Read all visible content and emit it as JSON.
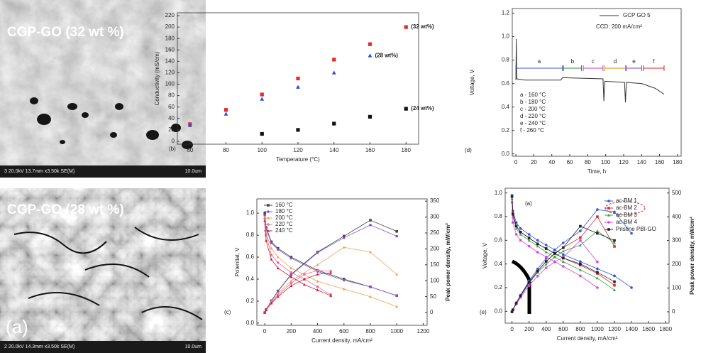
{
  "images": [
    {
      "label": "CGP-GO (32 wt %)",
      "info": "3 20.0kV 13.7mm x3.50k SE(M)",
      "scale": "10.0um"
    },
    {
      "label": "CGP-GO (28 wt %)",
      "panel_label": "(a)",
      "info": "2 20.0kV 14.3mm x3.50k SE(M)",
      "scale": "10.0um"
    }
  ],
  "chart_data": [
    {
      "type": "scatter",
      "panel_label": "(b)",
      "x_label": "Temperature (°C)",
      "y_label": "Conductivity (mS/cm)",
      "xlim": [
        53,
        187
      ],
      "xticks": [
        60,
        80,
        100,
        120,
        140,
        160,
        180
      ],
      "ylim": [
        -5,
        225
      ],
      "yticks": [
        0,
        20,
        40,
        60,
        80,
        100,
        120,
        140,
        160,
        180,
        200,
        220
      ],
      "label_color": "#e8282b",
      "series": [
        {
          "name": "(32 wt%)",
          "color": "#e8282b",
          "marker": "square",
          "x": [
            60,
            80,
            100,
            120,
            140,
            160,
            180
          ],
          "values": [
            30,
            55,
            82,
            110,
            143,
            170,
            200
          ]
        },
        {
          "name": "(28 wt%)",
          "color": "#2b4fd8",
          "marker": "triangle",
          "x": [
            60,
            80,
            100,
            120,
            140,
            160
          ],
          "values": [
            28,
            48,
            74,
            95,
            120,
            150
          ]
        },
        {
          "name": "(24 wt%)",
          "color": "#111111",
          "marker": "square",
          "x": [
            100,
            120,
            140,
            160,
            180
          ],
          "values": [
            13,
            20,
            31,
            43,
            57
          ]
        }
      ]
    },
    {
      "type": "line",
      "panel_label": "(d)",
      "x_label": "Time, h",
      "y_label": "Voltage, V",
      "xlim": [
        -4,
        184
      ],
      "xticks": [
        0,
        20,
        40,
        60,
        80,
        100,
        120,
        140,
        160,
        180
      ],
      "ylim": [
        -0.02,
        1.24
      ],
      "yticks": [
        {
          "value": 0,
          "label": "0.0"
        },
        0.2,
        0.4,
        0.6,
        0.8,
        {
          "value": 1,
          "label": "1.0"
        },
        1.2
      ],
      "series": [
        {
          "name": "GCP GO 5",
          "color": "#333333",
          "x": [
            0,
            0.5,
            1,
            10,
            50,
            52,
            97,
            98,
            99,
            121,
            122,
            123,
            140,
            155,
            165
          ],
          "values": [
            0.63,
            0.98,
            0.64,
            0.63,
            0.63,
            0.65,
            0.64,
            0.45,
            0.62,
            0.61,
            0.44,
            0.61,
            0.6,
            0.56,
            0.51
          ]
        }
      ],
      "annotation": "CCD: 200 mA/cm²",
      "segments": [
        {
          "label": "a",
          "start": 0,
          "end": 52,
          "color": "#4452c0"
        },
        {
          "label": "b",
          "start": 53,
          "end": 73,
          "color": "#2a8a3a"
        },
        {
          "label": "c",
          "start": 75,
          "end": 97,
          "color": "#c43bd0"
        },
        {
          "label": "d",
          "start": 99,
          "end": 122,
          "color": "#e08a00"
        },
        {
          "label": "e",
          "start": 123,
          "end": 140,
          "color": "#8040c0"
        },
        {
          "label": "f",
          "start": 142,
          "end": 165,
          "color": "#d82020"
        }
      ],
      "notes": [
        {
          "text": "a - 160 °C",
          "color": "#4452c0"
        },
        {
          "text": "b - 180 °C",
          "color": "#2a8a3a"
        },
        {
          "text": "c - 200 °C",
          "color": "#c43bd0"
        },
        {
          "text": "d - 220 °C",
          "color": "#e08a00"
        },
        {
          "text": "e - 240 °C",
          "color": "#8040c0"
        },
        {
          "text": "f - 260 °C",
          "color": "#d82020"
        }
      ]
    },
    {
      "type": "combo",
      "panel_label": "(c)",
      "x_label": "Current density, mA/cm²",
      "y_label": "Potential, V",
      "y2_label": "Peak power density, mW/cm²",
      "y2_color": "#2a2aa0",
      "xlim": [
        -60,
        1230
      ],
      "xticks": [
        0,
        200,
        400,
        600,
        800,
        1000,
        1200
      ],
      "ylim": [
        -0.02,
        1.13
      ],
      "yticks": [
        {
          "value": 0,
          "label": "0.0"
        },
        0.2,
        0.4,
        0.6,
        0.8,
        {
          "value": 1,
          "label": "1.0"
        }
      ],
      "y2lim": [
        -40,
        357
      ],
      "y2ticks": [
        0,
        50,
        100,
        150,
        200,
        250,
        300,
        350
      ],
      "series": [
        {
          "name": "160 °C",
          "color": "#3a4a3a",
          "marker": "square",
          "x": [
            0,
            10,
            50,
            100,
            200,
            400,
            600,
            800,
            1000
          ],
          "values": [
            1.0,
            0.87,
            0.74,
            0.68,
            0.6,
            0.48,
            0.4,
            0.33,
            0.25
          ],
          "power_values": [
            0,
            10,
            37,
            68,
            120,
            190,
            240,
            290,
            255
          ]
        },
        {
          "name": "180 °C",
          "color": "#8a4fd0",
          "marker": "circle",
          "x": [
            0,
            10,
            50,
            100,
            200,
            400,
            600,
            800,
            1000
          ],
          "values": [
            0.98,
            0.86,
            0.73,
            0.67,
            0.59,
            0.47,
            0.39,
            0.33,
            0.25
          ],
          "power_values": [
            0,
            9,
            36,
            67,
            118,
            188,
            235,
            275,
            240
          ]
        },
        {
          "name": "200 °C",
          "color": "#f0a050",
          "marker": "triangle",
          "x": [
            0,
            10,
            50,
            100,
            200,
            400,
            600,
            800,
            1000
          ],
          "values": [
            0.96,
            0.82,
            0.68,
            0.6,
            0.5,
            0.38,
            0.31,
            0.24,
            0.15
          ],
          "power_values": [
            0,
            8,
            34,
            60,
            100,
            150,
            205,
            190,
            120
          ]
        },
        {
          "name": "220 °C",
          "color": "#e070a0",
          "marker": "circle",
          "x": [
            0,
            10,
            50,
            100,
            200,
            300,
            400,
            500
          ],
          "values": [
            0.95,
            0.8,
            0.62,
            0.55,
            0.46,
            0.4,
            0.33,
            0.26
          ],
          "power_values": [
            0,
            8,
            31,
            55,
            92,
            120,
            132,
            130
          ]
        },
        {
          "name": "240 °C",
          "color": "#d02030",
          "marker": "triangle",
          "x": [
            0,
            10,
            50,
            100,
            200,
            300,
            400,
            500
          ],
          "values": [
            0.93,
            0.75,
            0.58,
            0.5,
            0.42,
            0.35,
            0.3,
            0.25
          ],
          "power_values": [
            0,
            8,
            29,
            50,
            84,
            105,
            120,
            125
          ]
        }
      ]
    },
    {
      "type": "combo",
      "panel_label": "(e)",
      "inset_label": "(a)",
      "x_label": "Current density, mA/cm²",
      "y_label": "Voltage, V",
      "y2_label": "Peak power density, mW/cm²",
      "y2_color": "#2a2ad8",
      "xlim": [
        -80,
        1840
      ],
      "xticks": [
        0,
        200,
        400,
        600,
        800,
        1000,
        1200,
        1400,
        1600,
        1800
      ],
      "ylim": [
        -0.1,
        1.04
      ],
      "yticks": [
        {
          "value": 0,
          "label": "0.0"
        },
        0.2,
        0.4,
        0.6,
        0.8,
        {
          "value": 1,
          "label": "1.0"
        }
      ],
      "y2lim": [
        -48,
        520
      ],
      "y2ticks": [
        0,
        100,
        200,
        300,
        400,
        500
      ],
      "series": [
        {
          "name": "ac-BM 1",
          "color": "#3050e0",
          "marker": "circle",
          "x": [
            0,
            10,
            50,
            100,
            200,
            300,
            400,
            500,
            600,
            800,
            1000,
            1200,
            1400
          ],
          "values": [
            0.98,
            0.85,
            0.75,
            0.7,
            0.65,
            0.6,
            0.56,
            0.52,
            0.48,
            0.42,
            0.36,
            0.3,
            0.2
          ],
          "power_values": [
            0,
            9,
            38,
            70,
            130,
            180,
            225,
            260,
            290,
            340,
            430,
            420,
            330
          ]
        },
        {
          "name": "ac-BM 2",
          "color": "#d83030",
          "marker": "square",
          "x": [
            0,
            10,
            50,
            100,
            200,
            300,
            400,
            500,
            600,
            800,
            1000,
            1200
          ],
          "values": [
            0.97,
            0.83,
            0.72,
            0.67,
            0.62,
            0.57,
            0.53,
            0.49,
            0.45,
            0.39,
            0.32,
            0.22
          ],
          "power_values": [
            0,
            8,
            36,
            67,
            124,
            171,
            212,
            245,
            270,
            312,
            400,
            275
          ]
        },
        {
          "name": "ac-BM 3",
          "color": "#30a040",
          "marker": "triangle",
          "x": [
            0,
            10,
            50,
            100,
            200,
            300,
            400,
            500,
            600,
            800,
            1000,
            1200
          ],
          "values": [
            0.95,
            0.8,
            0.7,
            0.65,
            0.6,
            0.55,
            0.5,
            0.46,
            0.42,
            0.35,
            0.28,
            0.18
          ],
          "power_values": [
            0,
            8,
            35,
            65,
            120,
            165,
            200,
            230,
            255,
            280,
            340,
            290
          ]
        },
        {
          "name": "ac-BM 4",
          "color": "#e040e0",
          "marker": "circle",
          "x": [
            0,
            10,
            50,
            100,
            200,
            300,
            400,
            500,
            600,
            800,
            1000
          ],
          "values": [
            0.92,
            0.75,
            0.65,
            0.6,
            0.55,
            0.5,
            0.46,
            0.42,
            0.38,
            0.3,
            0.2
          ],
          "power_values": [
            0,
            7,
            32,
            60,
            110,
            150,
            185,
            210,
            230,
            300,
            210
          ]
        },
        {
          "name": "Pristine PBI-GO",
          "color": "#222222",
          "marker": "square",
          "x": [
            0,
            10,
            50,
            100,
            200,
            300,
            400,
            500,
            600,
            800,
            1000,
            1200
          ],
          "values": [
            0.97,
            0.82,
            0.72,
            0.67,
            0.62,
            0.57,
            0.53,
            0.49,
            0.45,
            0.4,
            0.33,
            0.25
          ],
          "power_values": [
            0,
            8,
            36,
            67,
            124,
            171,
            212,
            245,
            270,
            360,
            330,
            300
          ]
        }
      ]
    }
  ]
}
